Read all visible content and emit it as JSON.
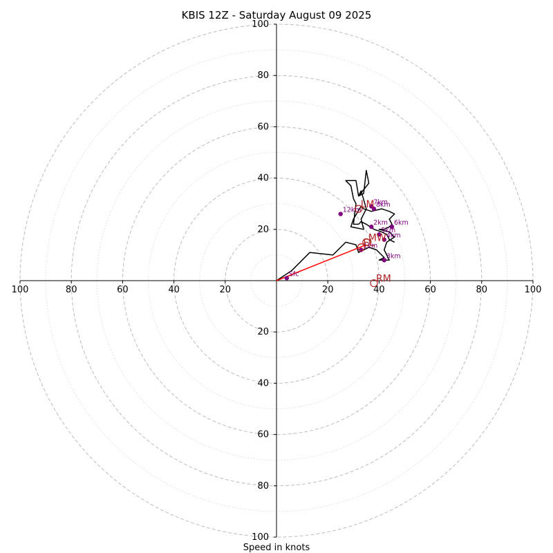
{
  "chart_data": {
    "type": "hodograph",
    "title": "KBIS 12Z - Saturday August 09 2025",
    "xlabel": "Speed in knots",
    "range": [
      -100,
      100
    ],
    "rings_dashed": [
      20,
      40,
      60,
      80,
      100
    ],
    "rings_dotted": [
      10,
      30,
      50,
      70,
      90
    ],
    "tick_values": [
      20,
      40,
      60,
      80,
      100
    ],
    "tick_labels": {
      "x_left": [
        "100",
        "80",
        "60",
        "40",
        "20"
      ],
      "x_right": [
        "20",
        "40",
        "60",
        "80",
        "100"
      ],
      "y_top": [
        "100",
        "80",
        "60",
        "40",
        "20"
      ],
      "y_bottom": [
        "20",
        "40",
        "60",
        "80",
        "100"
      ]
    },
    "colors": {
      "trace": "#000000",
      "heights": "#800080",
      "motion": "#b22222",
      "shear": "#ff0000",
      "rings": "#bbbbbb"
    },
    "trace": [
      [
        0,
        0
      ],
      [
        6,
        4
      ],
      [
        13,
        11
      ],
      [
        22,
        10
      ],
      [
        27,
        15
      ],
      [
        31,
        14
      ],
      [
        32,
        11
      ],
      [
        36,
        13
      ],
      [
        39,
        12
      ],
      [
        42,
        9
      ],
      [
        40,
        8
      ],
      [
        44,
        8
      ],
      [
        42,
        12
      ],
      [
        43,
        15
      ],
      [
        46,
        17
      ],
      [
        44,
        19
      ],
      [
        40,
        20
      ],
      [
        42,
        20
      ],
      [
        44,
        21
      ],
      [
        45,
        22
      ],
      [
        44,
        24
      ],
      [
        46,
        26
      ],
      [
        44,
        27
      ],
      [
        41,
        28
      ],
      [
        37,
        27
      ],
      [
        34,
        28
      ],
      [
        33,
        29
      ],
      [
        30,
        24
      ],
      [
        29,
        21
      ],
      [
        34,
        20
      ],
      [
        33,
        24
      ],
      [
        35,
        28
      ],
      [
        33,
        35
      ],
      [
        32,
        33
      ],
      [
        36,
        38
      ],
      [
        35,
        43
      ],
      [
        34,
        34
      ],
      [
        32,
        33
      ],
      [
        31,
        39
      ],
      [
        27,
        39
      ],
      [
        29,
        37
      ],
      [
        30,
        32
      ],
      [
        31,
        30
      ],
      [
        30,
        22
      ],
      [
        32,
        22
      ],
      [
        33,
        23
      ],
      [
        35,
        22
      ],
      [
        38,
        20
      ],
      [
        41,
        19
      ],
      [
        43,
        18
      ],
      [
        44,
        16
      ],
      [
        46,
        15
      ]
    ],
    "height_points": [
      {
        "label": "Sfc",
        "u": 4,
        "v": 1
      },
      {
        "label": "1km",
        "u": 33,
        "v": 12
      },
      {
        "label": "2km",
        "u": 37,
        "v": 21
      },
      {
        "label": "3km",
        "u": 42,
        "v": 8
      },
      {
        "label": "4km",
        "u": 42,
        "v": 16
      },
      {
        "label": "5km",
        "u": 40,
        "v": 18
      },
      {
        "label": "6km",
        "u": 45,
        "v": 21
      },
      {
        "label": "7km",
        "u": 37,
        "v": 29
      },
      {
        "label": "8km",
        "u": 38,
        "v": 28
      },
      {
        "label": "12km",
        "u": 25,
        "v": 26
      }
    ],
    "storm_motion": [
      {
        "label": "RM",
        "u": 38,
        "v": -1
      },
      {
        "label": "LM",
        "u": 32,
        "v": 28
      },
      {
        "label": "MW",
        "u": 35,
        "v": 15
      },
      {
        "label": "EL",
        "u": 33,
        "v": 13
      }
    ],
    "shear_vector": {
      "from": [
        0,
        0
      ],
      "to": [
        35,
        14
      ]
    }
  }
}
